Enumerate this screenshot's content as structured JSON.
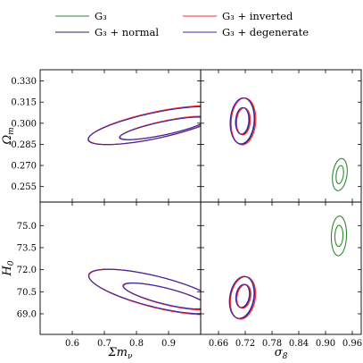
{
  "chart_data": {
    "type": "contour-corner",
    "legend": {
      "placement": "top",
      "entries": [
        {
          "label": "G₃",
          "color": "#2e8b2e"
        },
        {
          "label": "G₃ + inverted",
          "color": "#ff2a2a"
        },
        {
          "label": "G₃ + normal",
          "color": "#222266"
        },
        {
          "label": "G₃ + degenerate",
          "color": "#3a2aa8"
        }
      ]
    },
    "axes": {
      "sum_mnu": {
        "label": "Σm",
        "subscript": "ν",
        "range": [
          0.5,
          1.0
        ],
        "ticks": [
          "0.6",
          "0.7",
          "0.8",
          "0.9"
        ],
        "tick_values": [
          0.6,
          0.7,
          0.8,
          0.9
        ]
      },
      "sigma8": {
        "label": "σ",
        "subscript": "8",
        "range": [
          0.62,
          0.98
        ],
        "ticks": [
          "0.66",
          "0.72",
          "0.78",
          "0.84",
          "0.90",
          "0.96"
        ],
        "tick_values": [
          0.66,
          0.72,
          0.78,
          0.84,
          0.9,
          0.96
        ]
      },
      "omega_m": {
        "label": "Ω",
        "subscript": "m",
        "range": [
          0.244,
          0.338
        ],
        "ticks": [
          "0.330",
          "0.315",
          "0.300",
          "0.285",
          "0.270",
          "0.255"
        ],
        "tick_values": [
          0.33,
          0.315,
          0.3,
          0.285,
          0.27,
          0.255
        ]
      },
      "h0": {
        "label": "H",
        "subscript": "0",
        "range": [
          67.6,
          76.6
        ],
        "ticks": [
          "75.0",
          "73.5",
          "72.0",
          "70.5",
          "69.0"
        ],
        "tick_values": [
          75.0,
          73.5,
          72.0,
          70.5,
          69.0
        ]
      }
    },
    "panels": [
      {
        "name": "omega-m-vs-sum-mnu",
        "x": "sum_mnu",
        "y": "omega_m",
        "contours": [
          {
            "series": "G₃ + normal",
            "color": "#222266",
            "center": [
              0.86,
              0.2985
            ],
            "rx": 0.215,
            "ry": 0.0093,
            "angle": -12
          },
          {
            "series": "G₃ + normal",
            "color": "#222266",
            "center": [
              0.885,
              0.2965
            ],
            "rx": 0.14,
            "ry": 0.0048,
            "angle": -12
          },
          {
            "series": "G₃ + inverted",
            "color": "#ff2a2a",
            "center": [
              0.862,
              0.2987
            ],
            "rx": 0.216,
            "ry": 0.0094,
            "angle": -12
          },
          {
            "series": "G₃ + inverted",
            "color": "#ff2a2a",
            "center": [
              0.887,
              0.2967
            ],
            "rx": 0.141,
            "ry": 0.0049,
            "angle": -12
          },
          {
            "series": "G₃ + degenerate",
            "color": "#3a2aa8",
            "center": [
              0.858,
              0.2983
            ],
            "rx": 0.213,
            "ry": 0.0091,
            "angle": -12
          },
          {
            "series": "G₃ + degenerate",
            "color": "#3a2aa8",
            "center": [
              0.883,
              0.2963
            ],
            "rx": 0.139,
            "ry": 0.0047,
            "angle": -12
          }
        ]
      },
      {
        "name": "omega-m-vs-sigma8",
        "x": "sigma8",
        "y": "omega_m",
        "contours": [
          {
            "series": "G₃",
            "color": "#2e8b2e",
            "center": [
              0.932,
              0.2635
            ],
            "rx": 0.016,
            "ry": 0.0115,
            "angle": 8
          },
          {
            "series": "G₃",
            "color": "#2e8b2e",
            "center": [
              0.932,
              0.2635
            ],
            "rx": 0.008,
            "ry": 0.0065,
            "angle": 8
          },
          {
            "series": "G₃ + normal",
            "color": "#222266",
            "center": [
              0.714,
              0.3015
            ],
            "rx": 0.027,
            "ry": 0.0165,
            "angle": 4
          },
          {
            "series": "G₃ + normal",
            "color": "#222266",
            "center": [
              0.714,
              0.3015
            ],
            "rx": 0.015,
            "ry": 0.0095,
            "angle": 4
          },
          {
            "series": "G₃ + inverted",
            "color": "#ff2a2a",
            "center": [
              0.716,
              0.3013
            ],
            "rx": 0.0275,
            "ry": 0.0167,
            "angle": 4
          },
          {
            "series": "G₃ + inverted",
            "color": "#ff2a2a",
            "center": [
              0.716,
              0.3013
            ],
            "rx": 0.0152,
            "ry": 0.0096,
            "angle": 4
          },
          {
            "series": "G₃ + degenerate",
            "color": "#3a2aa8",
            "center": [
              0.713,
              0.3017
            ],
            "rx": 0.0268,
            "ry": 0.0163,
            "angle": 4
          },
          {
            "series": "G₃ + degenerate",
            "color": "#3a2aa8",
            "center": [
              0.713,
              0.3017
            ],
            "rx": 0.0148,
            "ry": 0.0094,
            "angle": 4
          }
        ]
      },
      {
        "name": "h0-vs-sum-mnu",
        "x": "sum_mnu",
        "y": "h0",
        "contours": [
          {
            "series": "G₃ + normal",
            "color": "#222266",
            "center": [
              0.86,
              70.5
            ],
            "rx": 0.215,
            "ry": 1.05,
            "angle": 14
          },
          {
            "series": "G₃ + normal",
            "color": "#222266",
            "center": [
              0.89,
              70.2
            ],
            "rx": 0.135,
            "ry": 0.55,
            "angle": 14
          },
          {
            "series": "G₃ + inverted",
            "color": "#ff2a2a",
            "center": [
              0.862,
              70.48
            ],
            "rx": 0.216,
            "ry": 1.06,
            "angle": 14
          },
          {
            "series": "G₃ + inverted",
            "color": "#ff2a2a",
            "center": [
              0.892,
              70.18
            ],
            "rx": 0.136,
            "ry": 0.56,
            "angle": 14
          },
          {
            "series": "G₃ + degenerate",
            "color": "#3a2aa8",
            "center": [
              0.858,
              70.52
            ],
            "rx": 0.213,
            "ry": 1.04,
            "angle": 14
          },
          {
            "series": "G₃ + degenerate",
            "color": "#3a2aa8",
            "center": [
              0.888,
              70.22
            ],
            "rx": 0.134,
            "ry": 0.54,
            "angle": 14
          }
        ]
      },
      {
        "name": "h0-vs-sigma8",
        "x": "sigma8",
        "y": "h0",
        "contours": [
          {
            "series": "G₃",
            "color": "#2e8b2e",
            "center": [
              0.93,
              74.3
            ],
            "rx": 0.017,
            "ry": 1.35,
            "angle": 2
          },
          {
            "series": "G₃",
            "color": "#2e8b2e",
            "center": [
              0.93,
              74.3
            ],
            "rx": 0.009,
            "ry": 0.72,
            "angle": 2
          },
          {
            "series": "G₃ + normal",
            "color": "#222266",
            "center": [
              0.713,
              70.1
            ],
            "rx": 0.027,
            "ry": 1.45,
            "angle": 10
          },
          {
            "series": "G₃ + normal",
            "color": "#222266",
            "center": [
              0.715,
              70.2
            ],
            "rx": 0.015,
            "ry": 0.8,
            "angle": 10
          },
          {
            "series": "G₃ + inverted",
            "color": "#ff2a2a",
            "center": [
              0.715,
              70.08
            ],
            "rx": 0.0275,
            "ry": 1.46,
            "angle": 10
          },
          {
            "series": "G₃ + inverted",
            "color": "#ff2a2a",
            "center": [
              0.717,
              70.18
            ],
            "rx": 0.0152,
            "ry": 0.81,
            "angle": 10
          },
          {
            "series": "G₃ + degenerate",
            "color": "#3a2aa8",
            "center": [
              0.712,
              70.12
            ],
            "rx": 0.0268,
            "ry": 1.44,
            "angle": 10
          },
          {
            "series": "G₃ + degenerate",
            "color": "#3a2aa8",
            "center": [
              0.714,
              70.22
            ],
            "rx": 0.0148,
            "ry": 0.79,
            "angle": 10
          }
        ]
      }
    ]
  }
}
